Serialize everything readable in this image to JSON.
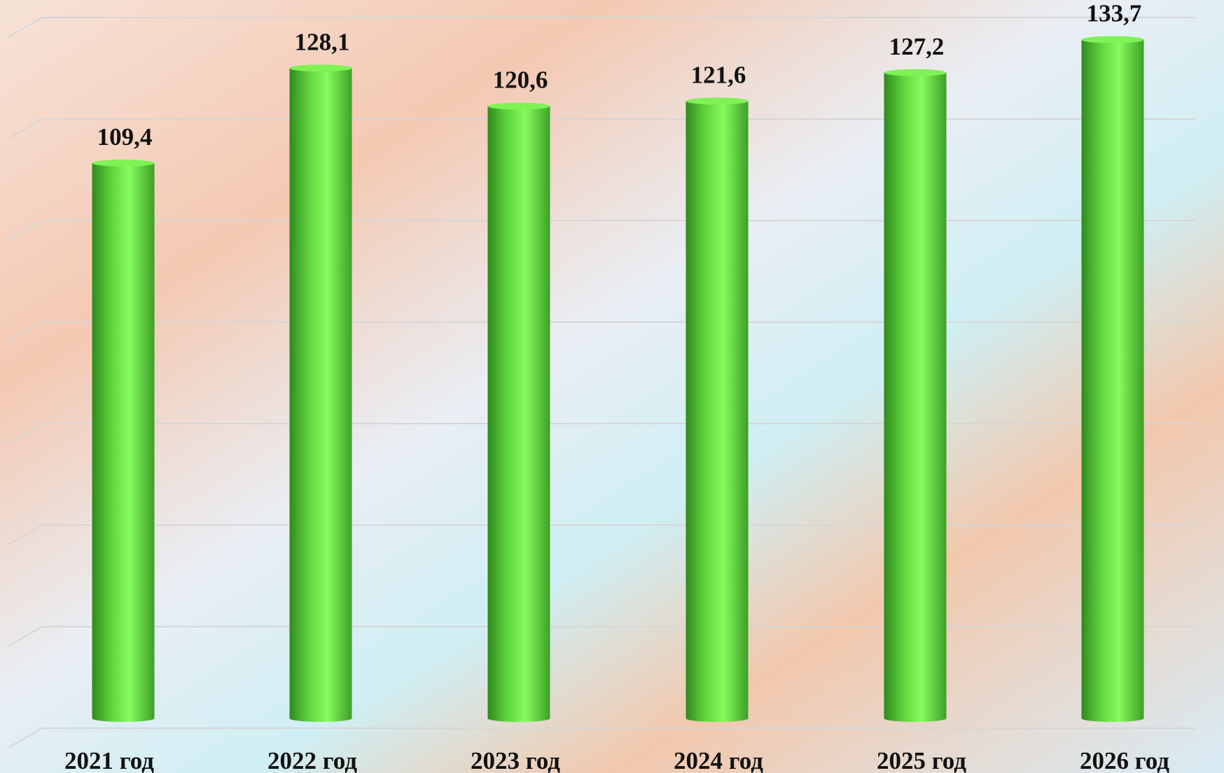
{
  "chart_data": {
    "type": "bar",
    "categories": [
      "2021 год",
      "2022 год",
      "2023 год",
      "2024 год",
      "2025 год",
      "2026 год"
    ],
    "values": [
      109.4,
      128.1,
      120.6,
      121.6,
      127.2,
      133.7
    ],
    "value_labels": [
      "109,4",
      "128,1",
      "120,6",
      "121,6",
      "127,2",
      "133,7"
    ],
    "color": "#6fe84a",
    "ylim": [
      0,
      140
    ],
    "yticks": [
      0,
      20,
      40,
      60,
      80,
      100,
      120,
      140
    ],
    "grid": true
  }
}
